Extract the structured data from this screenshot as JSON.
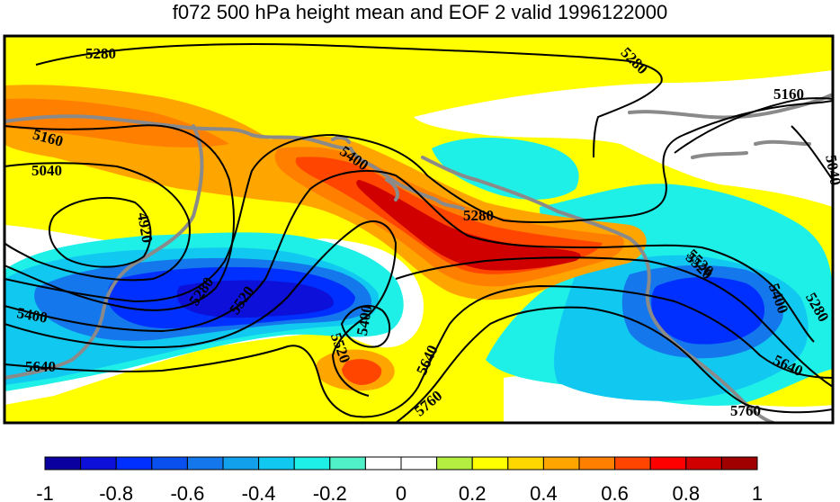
{
  "title": "f072 500 hPa height mean and EOF 2 valid 1996122000",
  "contour_labels": [
    "5280",
    "5280",
    "5160",
    "5040",
    "4920",
    "5160",
    "5040",
    "5400",
    "5280",
    "5280",
    "5520",
    "5400",
    "5520",
    "5400",
    "5640",
    "5520",
    "5640",
    "5760",
    "5520",
    "5400",
    "5280",
    "5640",
    "5760"
  ],
  "colorbar": {
    "tick_labels": [
      "-1",
      "-0.8",
      "-0.6",
      "-0.4",
      "-0.2",
      "0",
      "0.2",
      "0.4",
      "0.6",
      "0.8",
      "1"
    ],
    "colors": [
      "#0a00a0",
      "#0c10d8",
      "#0030ff",
      "#0a50ee",
      "#1478ec",
      "#12a0ec",
      "#10c8f0",
      "#1ef0e8",
      "#50f0c8",
      "#ffffff",
      "#ffffff",
      "#b4ee40",
      "#ffff00",
      "#ffd700",
      "#ffa500",
      "#ff7f00",
      "#ff4500",
      "#ff0000",
      "#d00000",
      "#a00000"
    ]
  },
  "colors": {
    "land_outline": "#8a8a8a",
    "contour": "#000000",
    "frame": "#000000"
  }
}
